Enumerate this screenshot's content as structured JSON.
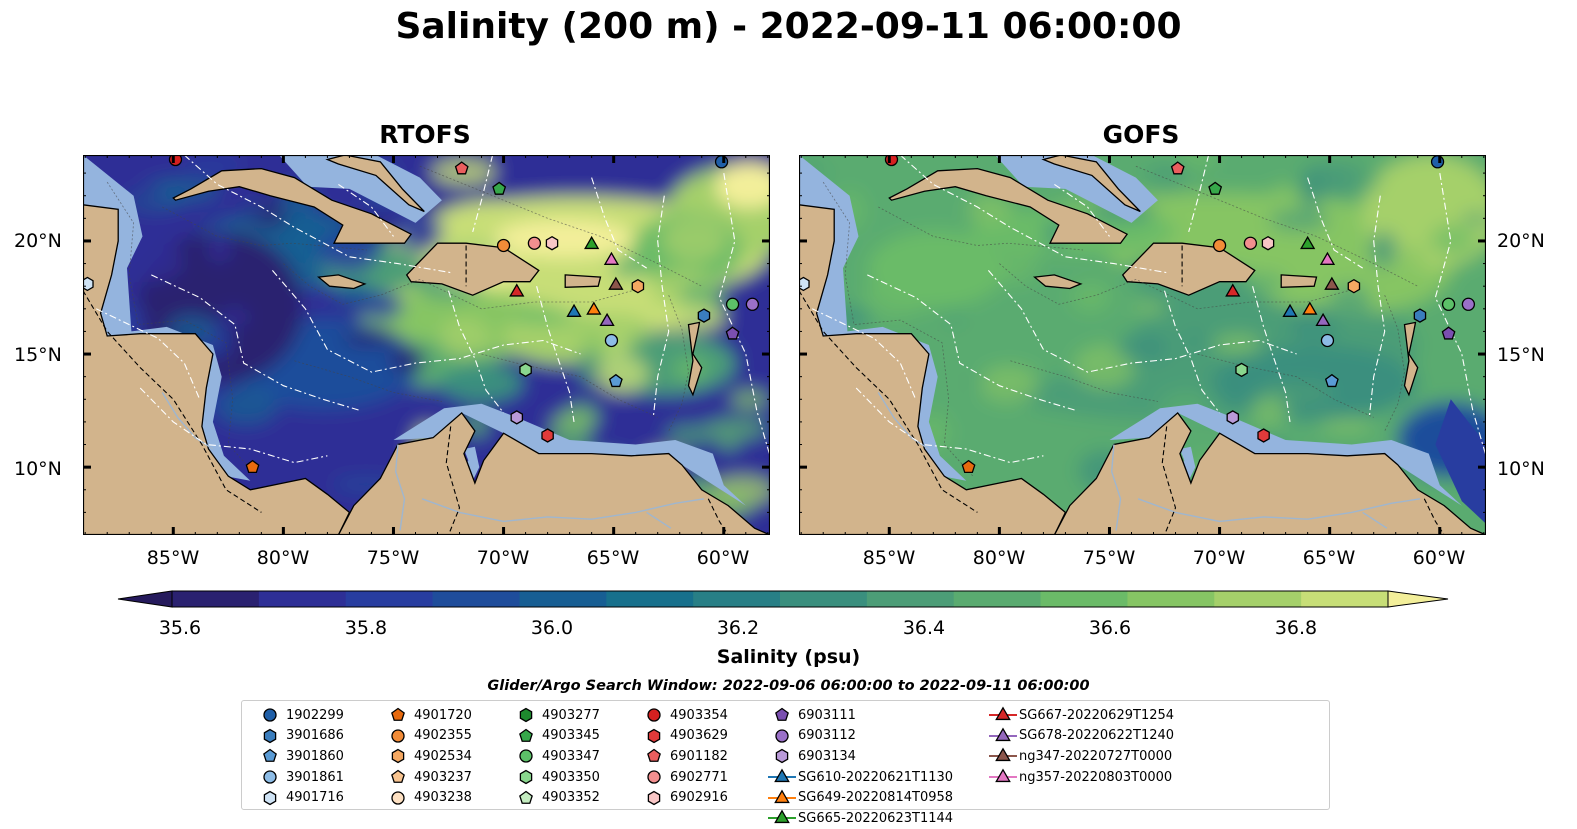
{
  "title": "Salinity (200 m) - 2022-09-11 06:00:00",
  "panels": [
    {
      "title": "RTOFS",
      "shade": "rtofs"
    },
    {
      "title": "GOFS",
      "shade": "gofs"
    }
  ],
  "lat_labels": [
    "20°N",
    "15°N",
    "10°N"
  ],
  "lon_labels": [
    "85°W",
    "80°W",
    "75°W",
    "70°W",
    "65°W",
    "60°W"
  ],
  "colorbar": {
    "label": "Salinity (psu)",
    "ticks": [
      "35.6",
      "35.8",
      "36.0",
      "36.2",
      "36.4",
      "36.6",
      "36.8"
    ],
    "range": [
      35.55,
      36.95
    ],
    "colors": [
      "#2a2170",
      "#2e2f96",
      "#283da0",
      "#1f4d9b",
      "#175e93",
      "#17708c",
      "#287f86",
      "#3a8f7e",
      "#4c9d77",
      "#5aab70",
      "#6bbb68",
      "#86c564",
      "#a5d06a",
      "#c7de77"
    ],
    "extend_low_color": "#251a5c",
    "extend_high_color": "#f3ef9a"
  },
  "search_window": "Glider/Argo Search Window: 2022-09-06 06:00:00 to 2022-09-11 06:00:00",
  "legend": [
    [
      {
        "label": "1902299",
        "marker": "circle",
        "color": "#1f5fa8"
      },
      {
        "label": "3901686",
        "marker": "hexagon",
        "color": "#3a7dbd"
      },
      {
        "label": "3901860",
        "marker": "pentagon",
        "color": "#5a9bd5"
      },
      {
        "label": "3901861",
        "marker": "circle",
        "color": "#8dbce6"
      },
      {
        "label": "4901716",
        "marker": "hexagon",
        "color": "#cfe3f5"
      }
    ],
    [
      {
        "label": "4901720",
        "marker": "pentagon",
        "color": "#e86a0e"
      },
      {
        "label": "4902355",
        "marker": "circle",
        "color": "#f28c38"
      },
      {
        "label": "4902534",
        "marker": "hexagon",
        "color": "#f5a862"
      },
      {
        "label": "4903237",
        "marker": "pentagon",
        "color": "#f8c490"
      },
      {
        "label": "4903238",
        "marker": "circle",
        "color": "#fde0c2"
      }
    ],
    [
      {
        "label": "4903277",
        "marker": "hexagon",
        "color": "#1e8a2e"
      },
      {
        "label": "4903345",
        "marker": "pentagon",
        "color": "#36a84a"
      },
      {
        "label": "4903347",
        "marker": "circle",
        "color": "#5cc068"
      },
      {
        "label": "4903350",
        "marker": "hexagon",
        "color": "#8ad68e"
      },
      {
        "label": "4903352",
        "marker": "pentagon",
        "color": "#c4ecc0"
      }
    ],
    [
      {
        "label": "4903354",
        "marker": "circle",
        "color": "#d62020"
      },
      {
        "label": "4903629",
        "marker": "hexagon",
        "color": "#e03a3a"
      },
      {
        "label": "6901182",
        "marker": "pentagon",
        "color": "#ea5e5e"
      },
      {
        "label": "6902771",
        "marker": "circle",
        "color": "#f28f8f"
      },
      {
        "label": "6902916",
        "marker": "hexagon",
        "color": "#f8c6c6"
      }
    ],
    [
      {
        "label": "6903111",
        "marker": "pentagon",
        "color": "#7a4fb0"
      },
      {
        "label": "6903112",
        "marker": "circle",
        "color": "#9a70c8"
      },
      {
        "label": "6903134",
        "marker": "hexagon",
        "color": "#b99ad8"
      },
      {
        "label": "SG610-20220621T1130",
        "marker": "triangle-line",
        "color": "#1f77b4"
      },
      {
        "label": "SG649-20220814T0958",
        "marker": "triangle-line",
        "color": "#ff7f0e"
      },
      {
        "label": "SG665-20220623T1144",
        "marker": "triangle-line",
        "color": "#2ca02c"
      }
    ],
    [
      {
        "label": "SG667-20220629T1254",
        "marker": "triangle-line",
        "color": "#d62728"
      },
      {
        "label": "SG678-20220622T1240",
        "marker": "triangle-line",
        "color": "#9467bd"
      },
      {
        "label": "ng347-20220727T0000",
        "marker": "triangle-line",
        "color": "#8c564b"
      },
      {
        "label": "ng357-20220803T0000",
        "marker": "triangle-line",
        "color": "#e377c2"
      }
    ]
  ],
  "map_markers": [
    {
      "lon": -84.9,
      "lat": 23.6,
      "marker": "circle",
      "color": "#d62020"
    },
    {
      "lon": -71.9,
      "lat": 23.2,
      "marker": "pentagon",
      "color": "#ea5e5e"
    },
    {
      "lon": -70.2,
      "lat": 22.3,
      "marker": "pentagon",
      "color": "#36a84a"
    },
    {
      "lon": -60.1,
      "lat": 23.5,
      "marker": "circle",
      "color": "#1f5fa8"
    },
    {
      "lon": -70.0,
      "lat": 19.8,
      "marker": "circle",
      "color": "#f28c38"
    },
    {
      "lon": -68.6,
      "lat": 19.9,
      "marker": "circle",
      "color": "#f28f8f"
    },
    {
      "lon": -67.8,
      "lat": 19.9,
      "marker": "hexagon",
      "color": "#f8c6c6"
    },
    {
      "lon": -66.0,
      "lat": 19.9,
      "marker": "triangle",
      "color": "#2ca02c"
    },
    {
      "lon": -65.1,
      "lat": 19.2,
      "marker": "triangle",
      "color": "#e377c2"
    },
    {
      "lon": -64.9,
      "lat": 18.1,
      "marker": "triangle",
      "color": "#8c564b"
    },
    {
      "lon": -63.9,
      "lat": 18.0,
      "marker": "hexagon",
      "color": "#f5a862"
    },
    {
      "lon": -69.4,
      "lat": 17.8,
      "marker": "triangle",
      "color": "#d62728"
    },
    {
      "lon": -66.8,
      "lat": 16.9,
      "marker": "triangle",
      "color": "#1f77b4"
    },
    {
      "lon": -65.9,
      "lat": 17.0,
      "marker": "triangle",
      "color": "#ff7f0e"
    },
    {
      "lon": -65.3,
      "lat": 16.5,
      "marker": "triangle",
      "color": "#9467bd"
    },
    {
      "lon": -65.1,
      "lat": 15.6,
      "marker": "circle",
      "color": "#8dbce6"
    },
    {
      "lon": -64.9,
      "lat": 13.8,
      "marker": "pentagon",
      "color": "#5a9bd5"
    },
    {
      "lon": -60.9,
      "lat": 16.7,
      "marker": "hexagon",
      "color": "#3a7dbd"
    },
    {
      "lon": -59.6,
      "lat": 17.2,
      "marker": "circle",
      "color": "#5cc068"
    },
    {
      "lon": -58.7,
      "lat": 17.2,
      "marker": "circle",
      "color": "#9a70c8"
    },
    {
      "lon": -59.6,
      "lat": 15.9,
      "marker": "pentagon",
      "color": "#7a4fb0"
    },
    {
      "lon": -88.9,
      "lat": 18.1,
      "marker": "hexagon",
      "color": "#cfe3f5"
    },
    {
      "lon": -69.0,
      "lat": 14.3,
      "marker": "hexagon",
      "color": "#8ad68e"
    },
    {
      "lon": -69.4,
      "lat": 12.2,
      "marker": "hexagon",
      "color": "#b99ad8"
    },
    {
      "lon": -68.0,
      "lat": 11.4,
      "marker": "hexagon",
      "color": "#e03a3a"
    },
    {
      "lon": -81.4,
      "lat": 10.0,
      "marker": "pentagon",
      "color": "#e86a0e"
    }
  ]
}
